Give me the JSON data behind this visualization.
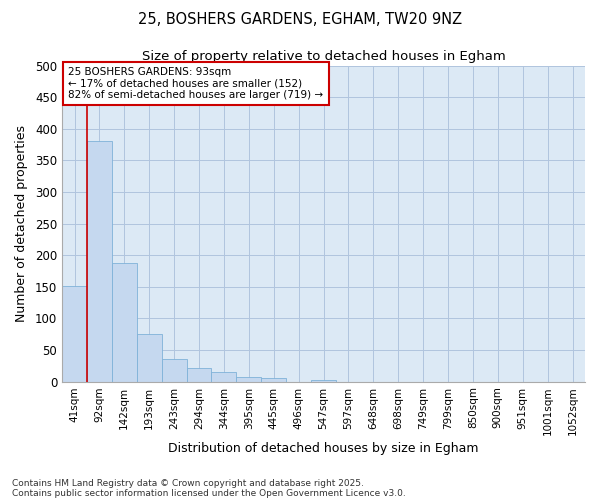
{
  "title1": "25, BOSHERS GARDENS, EGHAM, TW20 9NZ",
  "title2": "Size of property relative to detached houses in Egham",
  "xlabel": "Distribution of detached houses by size in Egham",
  "ylabel": "Number of detached properties",
  "bar_categories": [
    "41sqm",
    "92sqm",
    "142sqm",
    "193sqm",
    "243sqm",
    "294sqm",
    "344sqm",
    "395sqm",
    "445sqm",
    "496sqm",
    "547sqm",
    "597sqm",
    "648sqm",
    "698sqm",
    "749sqm",
    "799sqm",
    "850sqm",
    "900sqm",
    "951sqm",
    "1001sqm",
    "1052sqm"
  ],
  "bar_values": [
    152,
    380,
    187,
    75,
    36,
    22,
    15,
    7,
    5,
    0,
    3,
    0,
    0,
    0,
    0,
    0,
    0,
    0,
    0,
    0,
    0
  ],
  "bar_color": "#c5d8ef",
  "bar_edge_color": "#7fb2d8",
  "vline_x_idx": 1,
  "vline_color": "#cc0000",
  "annotation_text": "25 BOSHERS GARDENS: 93sqm\n← 17% of detached houses are smaller (152)\n82% of semi-detached houses are larger (719) →",
  "annotation_box_color": "#ffffff",
  "annotation_box_edge": "#cc0000",
  "ylim": [
    0,
    500
  ],
  "yticks": [
    0,
    50,
    100,
    150,
    200,
    250,
    300,
    350,
    400,
    450,
    500
  ],
  "plot_bg_color": "#dce9f5",
  "background_color": "#ffffff",
  "grid_color": "#b0c4de",
  "footnote1": "Contains HM Land Registry data © Crown copyright and database right 2025.",
  "footnote2": "Contains public sector information licensed under the Open Government Licence v3.0."
}
